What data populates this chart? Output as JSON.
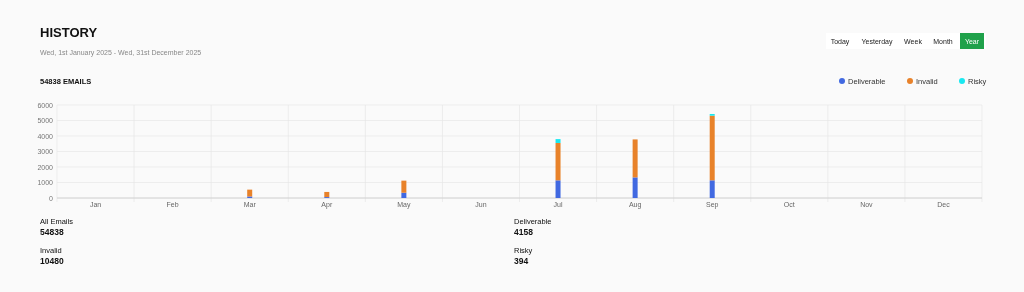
{
  "chart_data": {
    "type": "bar",
    "title": "HISTORY",
    "subtitle": "Wed, 1st January 2025 - Wed, 31st December 2025",
    "annotations": [
      "54838 EMAILS",
      "Today",
      "Yesterday",
      "Week",
      "Month",
      "Year",
      "All Emails",
      "54838",
      "Deliverable",
      "4158",
      "Invalid",
      "10480",
      "Risky",
      "394"
    ],
    "categories": [
      "Jan",
      "Feb",
      "Mar",
      "Apr",
      "May",
      "Jun",
      "Jul",
      "Aug",
      "Sep",
      "Oct",
      "Nov",
      "Dec"
    ],
    "stacked": true,
    "series": [
      {
        "name": "Deliverable",
        "color": "#4169e1",
        "values": [
          0,
          0,
          100,
          60,
          340,
          0,
          1140,
          1330,
          1140,
          0,
          0,
          0
        ]
      },
      {
        "name": "Invalid",
        "color": "#e8822a",
        "values": [
          0,
          0,
          440,
          330,
          780,
          0,
          2410,
          2450,
          4170,
          0,
          0,
          0
        ]
      },
      {
        "name": "Risky",
        "color": "#19e8f0",
        "values": [
          0,
          0,
          0,
          0,
          0,
          0,
          250,
          0,
          110,
          0,
          0,
          0
        ]
      }
    ],
    "ylim": [
      0,
      6000
    ],
    "yticks": [
      0,
      1000,
      2000,
      3000,
      4000,
      5000,
      6000
    ],
    "grid": true,
    "legend": "top right"
  }
}
